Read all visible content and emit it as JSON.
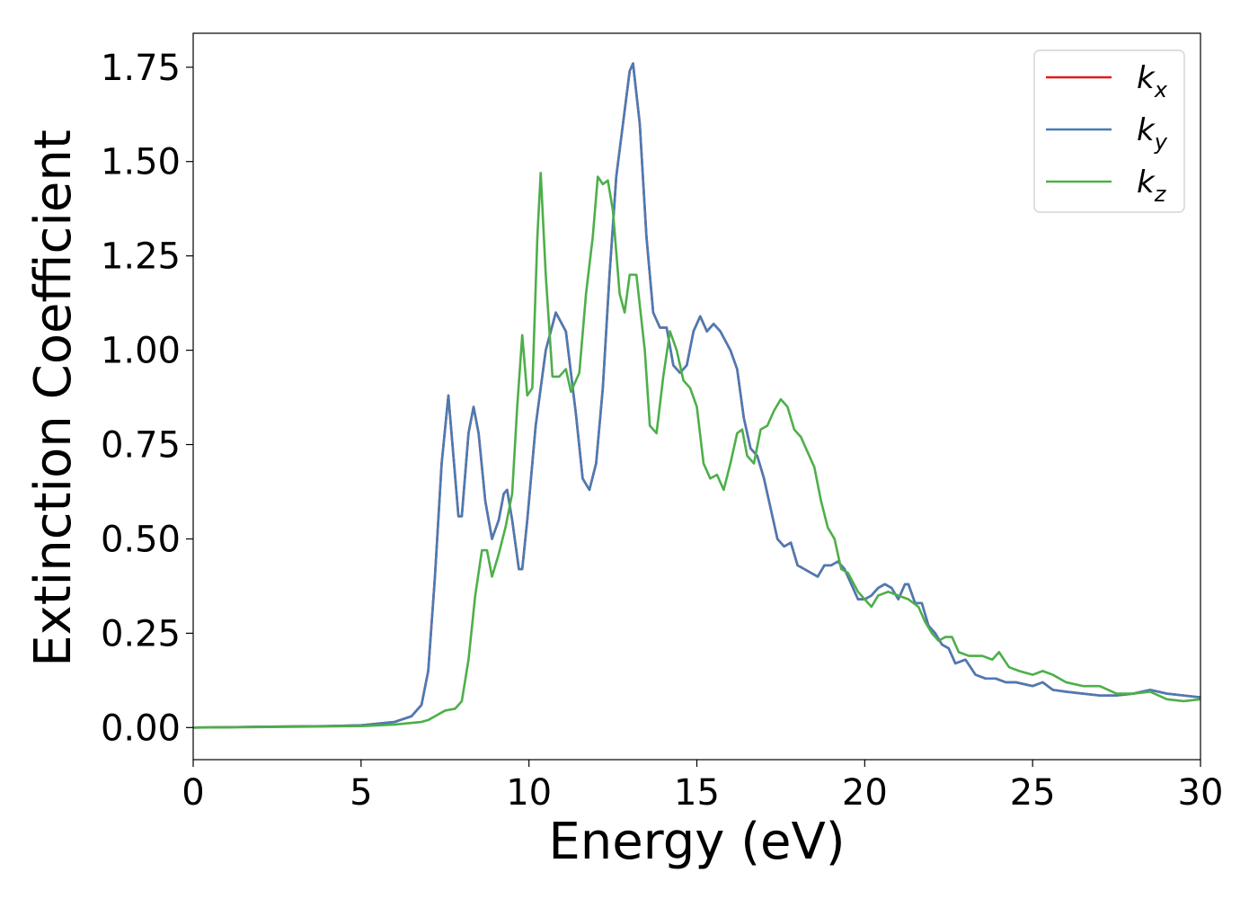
{
  "chart_data": {
    "type": "line",
    "title": "",
    "xlabel": "Energy (eV)",
    "ylabel": "Extinction Coefficient",
    "xlim": [
      0,
      30
    ],
    "ylim": [
      -0.085,
      1.84
    ],
    "xticks": [
      0,
      5,
      10,
      15,
      20,
      25,
      30
    ],
    "yticks": [
      0.0,
      0.25,
      0.5,
      0.75,
      1.0,
      1.25,
      1.5,
      1.75
    ],
    "xtick_labels": [
      "0",
      "5",
      "10",
      "15",
      "20",
      "25",
      "30"
    ],
    "ytick_labels": [
      "0.00",
      "0.25",
      "0.50",
      "0.75",
      "1.00",
      "1.25",
      "1.50",
      "1.75"
    ],
    "grid": false,
    "legend_position": "top-right",
    "series": [
      {
        "name": "k_x",
        "legend_main": "k",
        "legend_sub": "x",
        "color": "#e41a1c",
        "x": [
          0,
          2,
          4,
          5,
          6,
          6.5,
          6.8,
          7.0,
          7.2,
          7.4,
          7.6,
          7.75,
          7.9,
          8.0,
          8.2,
          8.35,
          8.5,
          8.7,
          8.9,
          9.1,
          9.25,
          9.35,
          9.5,
          9.7,
          9.8,
          9.95,
          10.2,
          10.5,
          10.8,
          11.1,
          11.4,
          11.6,
          11.8,
          12.0,
          12.2,
          12.4,
          12.6,
          12.8,
          13.0,
          13.1,
          13.3,
          13.5,
          13.7,
          13.9,
          14.1,
          14.3,
          14.5,
          14.7,
          14.9,
          15.1,
          15.3,
          15.5,
          15.7,
          16.0,
          16.2,
          16.4,
          16.6,
          16.8,
          17.0,
          17.2,
          17.4,
          17.6,
          17.8,
          18.0,
          18.2,
          18.4,
          18.6,
          18.8,
          19.0,
          19.2,
          19.4,
          19.6,
          19.8,
          20.0,
          20.2,
          20.4,
          20.6,
          20.8,
          21.0,
          21.2,
          21.3,
          21.5,
          21.7,
          21.9,
          22.1,
          22.3,
          22.5,
          22.7,
          23.0,
          23.3,
          23.6,
          23.9,
          24.2,
          24.5,
          25.0,
          25.3,
          25.6,
          26.0,
          26.5,
          27.0,
          27.5,
          28.0,
          28.5,
          29.0,
          29.5,
          30.0
        ],
        "values": [
          0.0,
          0.002,
          0.004,
          0.006,
          0.015,
          0.03,
          0.06,
          0.15,
          0.4,
          0.7,
          0.88,
          0.72,
          0.56,
          0.56,
          0.78,
          0.85,
          0.78,
          0.6,
          0.5,
          0.55,
          0.62,
          0.63,
          0.55,
          0.42,
          0.42,
          0.55,
          0.8,
          1.0,
          1.1,
          1.05,
          0.83,
          0.66,
          0.63,
          0.7,
          0.9,
          1.2,
          1.46,
          1.6,
          1.74,
          1.76,
          1.6,
          1.3,
          1.1,
          1.06,
          1.06,
          0.96,
          0.94,
          0.96,
          1.05,
          1.09,
          1.05,
          1.07,
          1.05,
          1.0,
          0.95,
          0.82,
          0.74,
          0.72,
          0.66,
          0.58,
          0.5,
          0.48,
          0.49,
          0.43,
          0.42,
          0.41,
          0.4,
          0.43,
          0.43,
          0.44,
          0.42,
          0.38,
          0.34,
          0.34,
          0.35,
          0.37,
          0.38,
          0.37,
          0.34,
          0.38,
          0.38,
          0.33,
          0.33,
          0.27,
          0.25,
          0.22,
          0.21,
          0.17,
          0.18,
          0.14,
          0.13,
          0.13,
          0.12,
          0.12,
          0.11,
          0.12,
          0.1,
          0.095,
          0.09,
          0.085,
          0.085,
          0.09,
          0.1,
          0.09,
          0.085,
          0.08
        ]
      },
      {
        "name": "k_y",
        "legend_main": "k",
        "legend_sub": "y",
        "color": "#4a7bb4",
        "x": [
          0,
          2,
          4,
          5,
          6,
          6.5,
          6.8,
          7.0,
          7.2,
          7.4,
          7.6,
          7.75,
          7.9,
          8.0,
          8.2,
          8.35,
          8.5,
          8.7,
          8.9,
          9.1,
          9.25,
          9.35,
          9.5,
          9.7,
          9.8,
          9.95,
          10.2,
          10.5,
          10.8,
          11.1,
          11.4,
          11.6,
          11.8,
          12.0,
          12.2,
          12.4,
          12.6,
          12.8,
          13.0,
          13.1,
          13.3,
          13.5,
          13.7,
          13.9,
          14.1,
          14.3,
          14.5,
          14.7,
          14.9,
          15.1,
          15.3,
          15.5,
          15.7,
          16.0,
          16.2,
          16.4,
          16.6,
          16.8,
          17.0,
          17.2,
          17.4,
          17.6,
          17.8,
          18.0,
          18.2,
          18.4,
          18.6,
          18.8,
          19.0,
          19.2,
          19.4,
          19.6,
          19.8,
          20.0,
          20.2,
          20.4,
          20.6,
          20.8,
          21.0,
          21.2,
          21.3,
          21.5,
          21.7,
          21.9,
          22.1,
          22.3,
          22.5,
          22.7,
          23.0,
          23.3,
          23.6,
          23.9,
          24.2,
          24.5,
          25.0,
          25.3,
          25.6,
          26.0,
          26.5,
          27.0,
          27.5,
          28.0,
          28.5,
          29.0,
          29.5,
          30.0
        ],
        "values": [
          0.0,
          0.002,
          0.004,
          0.006,
          0.015,
          0.03,
          0.06,
          0.15,
          0.4,
          0.7,
          0.88,
          0.72,
          0.56,
          0.56,
          0.78,
          0.85,
          0.78,
          0.6,
          0.5,
          0.55,
          0.62,
          0.63,
          0.55,
          0.42,
          0.42,
          0.55,
          0.8,
          1.0,
          1.1,
          1.05,
          0.83,
          0.66,
          0.63,
          0.7,
          0.9,
          1.2,
          1.46,
          1.6,
          1.74,
          1.76,
          1.6,
          1.3,
          1.1,
          1.06,
          1.06,
          0.96,
          0.94,
          0.96,
          1.05,
          1.09,
          1.05,
          1.07,
          1.05,
          1.0,
          0.95,
          0.82,
          0.74,
          0.72,
          0.66,
          0.58,
          0.5,
          0.48,
          0.49,
          0.43,
          0.42,
          0.41,
          0.4,
          0.43,
          0.43,
          0.44,
          0.42,
          0.38,
          0.34,
          0.34,
          0.35,
          0.37,
          0.38,
          0.37,
          0.34,
          0.38,
          0.38,
          0.33,
          0.33,
          0.27,
          0.25,
          0.22,
          0.21,
          0.17,
          0.18,
          0.14,
          0.13,
          0.13,
          0.12,
          0.12,
          0.11,
          0.12,
          0.1,
          0.095,
          0.09,
          0.085,
          0.085,
          0.09,
          0.1,
          0.09,
          0.085,
          0.08
        ]
      },
      {
        "name": "k_z",
        "legend_main": "k",
        "legend_sub": "z",
        "color": "#4daf4a",
        "x": [
          0,
          3,
          5,
          6,
          6.8,
          7.0,
          7.2,
          7.5,
          7.8,
          8.0,
          8.2,
          8.4,
          8.6,
          8.75,
          8.9,
          9.1,
          9.3,
          9.5,
          9.65,
          9.8,
          9.95,
          10.1,
          10.25,
          10.35,
          10.5,
          10.7,
          10.9,
          11.1,
          11.25,
          11.5,
          11.7,
          11.9,
          12.05,
          12.2,
          12.35,
          12.5,
          12.7,
          12.85,
          13.0,
          13.2,
          13.45,
          13.6,
          13.8,
          14.0,
          14.2,
          14.4,
          14.6,
          14.8,
          15.0,
          15.2,
          15.4,
          15.6,
          15.8,
          16.0,
          16.2,
          16.35,
          16.5,
          16.7,
          16.9,
          17.1,
          17.3,
          17.5,
          17.7,
          17.9,
          18.1,
          18.3,
          18.5,
          18.7,
          18.9,
          19.1,
          19.3,
          19.5,
          19.8,
          20.0,
          20.2,
          20.4,
          20.7,
          21.0,
          21.3,
          21.6,
          21.8,
          22.0,
          22.2,
          22.4,
          22.6,
          22.8,
          23.1,
          23.5,
          23.8,
          24.0,
          24.3,
          24.6,
          25.0,
          25.3,
          25.6,
          26.0,
          26.5,
          27.0,
          27.5,
          28.0,
          28.5,
          29.0,
          29.5,
          30.0
        ],
        "values": [
          0.0,
          0.002,
          0.004,
          0.008,
          0.015,
          0.02,
          0.03,
          0.045,
          0.05,
          0.07,
          0.18,
          0.35,
          0.47,
          0.47,
          0.4,
          0.46,
          0.53,
          0.62,
          0.85,
          1.04,
          0.88,
          0.9,
          1.3,
          1.47,
          1.2,
          0.93,
          0.93,
          0.95,
          0.89,
          0.94,
          1.15,
          1.3,
          1.46,
          1.44,
          1.45,
          1.37,
          1.15,
          1.1,
          1.2,
          1.2,
          1.0,
          0.8,
          0.78,
          0.93,
          1.05,
          1.0,
          0.92,
          0.9,
          0.85,
          0.7,
          0.66,
          0.67,
          0.63,
          0.7,
          0.78,
          0.79,
          0.72,
          0.7,
          0.79,
          0.8,
          0.84,
          0.87,
          0.85,
          0.79,
          0.77,
          0.73,
          0.69,
          0.6,
          0.53,
          0.5,
          0.42,
          0.41,
          0.36,
          0.34,
          0.32,
          0.35,
          0.36,
          0.35,
          0.34,
          0.32,
          0.28,
          0.25,
          0.23,
          0.24,
          0.24,
          0.2,
          0.19,
          0.19,
          0.18,
          0.2,
          0.16,
          0.15,
          0.14,
          0.15,
          0.14,
          0.12,
          0.11,
          0.11,
          0.09,
          0.09,
          0.095,
          0.075,
          0.07,
          0.075
        ]
      }
    ]
  }
}
